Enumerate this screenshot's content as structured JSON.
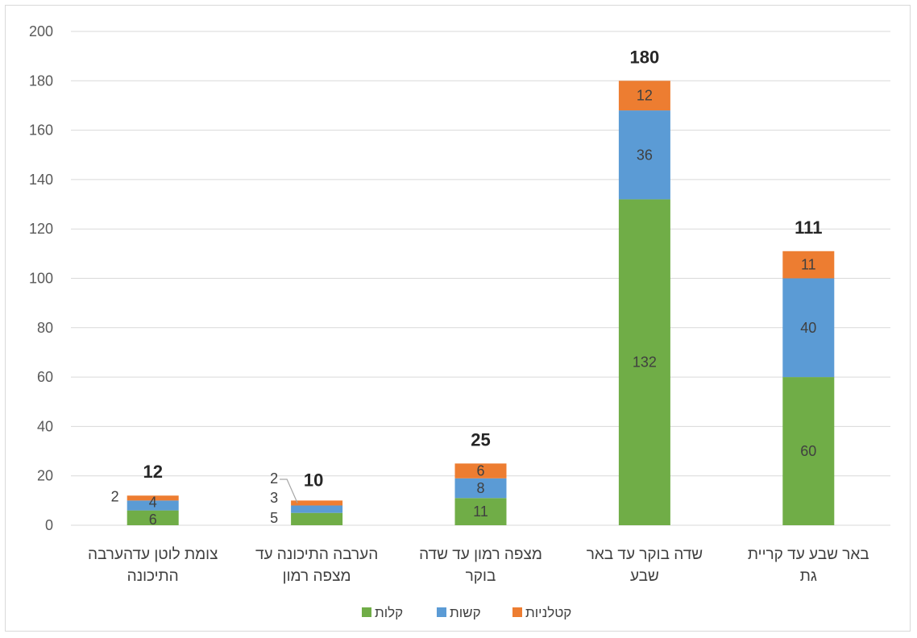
{
  "chart_data": {
    "type": "bar",
    "stacked": true,
    "categories": [
      [
        "צומת לוטן עדהערבה",
        "התיכונה"
      ],
      [
        "הערבה התיכונה עד",
        "מצפה רמון"
      ],
      [
        "מצפה רמון עד שדה",
        "בוקר"
      ],
      [
        "שדה בוקר עד באר",
        "שבע"
      ],
      [
        "באר שבע עד קריית",
        "גת"
      ]
    ],
    "series": [
      {
        "name": "קלות",
        "color": "#70ad47",
        "values": [
          6,
          5,
          11,
          132,
          60
        ]
      },
      {
        "name": "קשות",
        "color": "#5b9bd5",
        "values": [
          4,
          3,
          8,
          36,
          40
        ]
      },
      {
        "name": "קטלניות",
        "color": "#ed7d31",
        "values": [
          2,
          2,
          6,
          12,
          11
        ]
      }
    ],
    "totals": [
      12,
      10,
      25,
      180,
      111
    ],
    "ylim": [
      0,
      200
    ],
    "yticks": [
      0,
      20,
      40,
      60,
      80,
      100,
      120,
      140,
      160,
      180,
      200
    ],
    "grid": true,
    "legend": "bottom",
    "title": "",
    "xlabel": "",
    "ylabel": ""
  }
}
